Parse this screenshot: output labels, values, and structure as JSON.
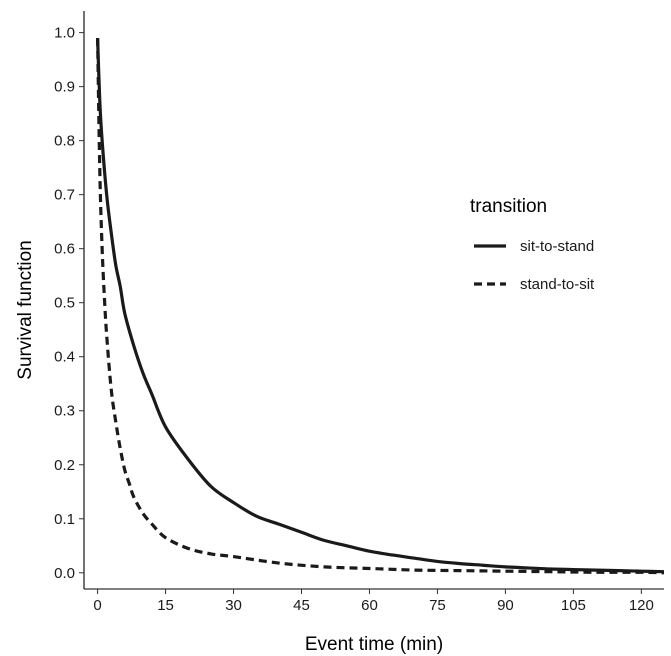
{
  "chart_data": {
    "type": "line",
    "title": "",
    "xlabel": "Event time (min)",
    "ylabel": "Survival function",
    "xlim": [
      -3,
      125
    ],
    "ylim": [
      -0.03,
      1.04
    ],
    "xticks": [
      0,
      15,
      30,
      45,
      60,
      75,
      90,
      105,
      120
    ],
    "xtick_labels": [
      "0",
      "15",
      "30",
      "45",
      "60",
      "75",
      "90",
      "105",
      "120"
    ],
    "yticks": [
      0.0,
      0.1,
      0.2,
      0.3,
      0.4,
      0.5,
      0.6,
      0.7,
      0.8,
      0.9,
      1.0
    ],
    "ytick_labels": [
      "0.0",
      "0.1",
      "0.2",
      "0.3",
      "0.4",
      "0.5",
      "0.6",
      "0.7",
      "0.8",
      "0.9",
      "1.0"
    ],
    "grid": false,
    "legend": {
      "title": "transition",
      "position": "right"
    },
    "series": [
      {
        "name": "sit-to-stand",
        "style": "solid",
        "color": "#1a1a1a",
        "x": [
          0,
          0.5,
          1,
          2,
          3,
          4,
          5,
          6,
          8,
          10,
          12,
          15,
          20,
          25,
          30,
          35,
          40,
          45,
          50,
          55,
          60,
          65,
          70,
          75,
          80,
          85,
          90,
          95,
          100,
          105,
          110,
          115,
          120,
          125
        ],
        "y": [
          0.99,
          0.87,
          0.8,
          0.7,
          0.63,
          0.57,
          0.53,
          0.48,
          0.42,
          0.37,
          0.33,
          0.27,
          0.21,
          0.16,
          0.13,
          0.105,
          0.09,
          0.075,
          0.06,
          0.05,
          0.04,
          0.033,
          0.027,
          0.021,
          0.017,
          0.014,
          0.011,
          0.009,
          0.007,
          0.006,
          0.005,
          0.004,
          0.003,
          0.002
        ]
      },
      {
        "name": "stand-to-sit",
        "style": "dashed",
        "color": "#1a1a1a",
        "x": [
          0,
          0.5,
          1,
          1.5,
          2,
          3,
          4,
          5,
          6,
          7,
          8,
          10,
          12,
          15,
          20,
          25,
          30,
          40,
          50,
          60,
          70,
          80,
          90,
          100,
          110,
          120,
          125
        ],
        "y": [
          0.99,
          0.74,
          0.6,
          0.51,
          0.44,
          0.34,
          0.28,
          0.23,
          0.19,
          0.165,
          0.14,
          0.11,
          0.09,
          0.065,
          0.045,
          0.035,
          0.03,
          0.018,
          0.011,
          0.008,
          0.005,
          0.004,
          0.003,
          0.002,
          0.001,
          0.001,
          0.0
        ]
      }
    ]
  }
}
